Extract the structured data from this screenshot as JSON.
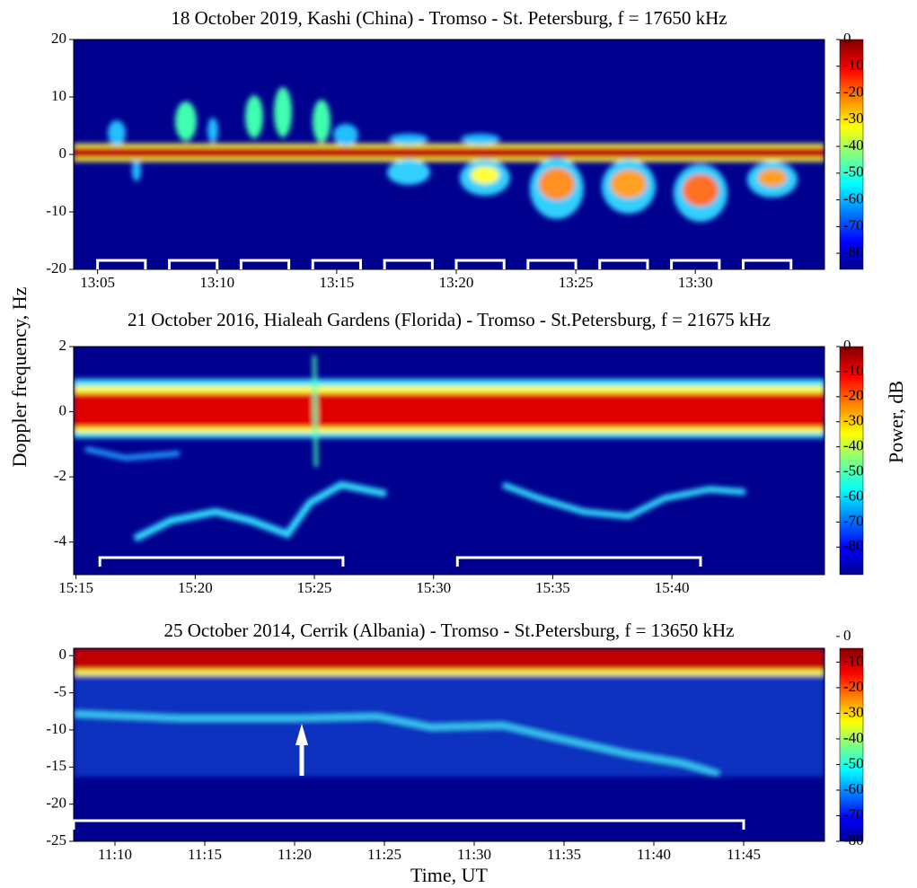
{
  "figure": {
    "y_label": "Doppler frequency, Hz",
    "x_label": "Time, UT",
    "colorbar_label": "Power, dB"
  },
  "chart_data": [
    {
      "type": "spectrogram",
      "title": "18 October 2019, Kashi (China) - Tromso - St. Petersburg, f = 17650 kHz",
      "xlim": [
        784,
        815.4
      ],
      "xticks": [
        {
          "value": 785,
          "label": "13:05"
        },
        {
          "value": 790,
          "label": "13:10"
        },
        {
          "value": 795,
          "label": "13:15"
        },
        {
          "value": 800,
          "label": "13:20"
        },
        {
          "value": 805,
          "label": "13:25"
        },
        {
          "value": 810,
          "label": "13:30"
        }
      ],
      "ylim": [
        -20,
        20
      ],
      "yticks": [
        -20,
        -10,
        0,
        10,
        20
      ],
      "clim": [
        -86,
        0
      ],
      "cticks": [
        0,
        -10,
        -20,
        -30,
        -40,
        -50,
        -60,
        -70,
        -80
      ],
      "intervals": [
        [
          785,
          787
        ],
        [
          788,
          790
        ],
        [
          791,
          793
        ],
        [
          794,
          796
        ],
        [
          797,
          799
        ],
        [
          800,
          802
        ],
        [
          803,
          805
        ],
        [
          806,
          808
        ],
        [
          809,
          811
        ],
        [
          812,
          814
        ]
      ]
    },
    {
      "type": "spectrogram",
      "title": "21 October 2016, Hialeah Gardens (Florida) - Tromso - St.Petersburg, f = 21675 kHz",
      "xlim": [
        914.9,
        946.4
      ],
      "xticks": [
        {
          "value": 915,
          "label": "15:15"
        },
        {
          "value": 920,
          "label": "15:20"
        },
        {
          "value": 925,
          "label": "15:25"
        },
        {
          "value": 930,
          "label": "15:30"
        },
        {
          "value": 935,
          "label": "15:35"
        },
        {
          "value": 940,
          "label": "15:40"
        }
      ],
      "ylim": [
        -5,
        2
      ],
      "yticks": [
        -4,
        -2,
        0,
        2
      ],
      "clim": [
        -91,
        0
      ],
      "cticks": [
        0,
        -10,
        -20,
        -30,
        -40,
        -50,
        -60,
        -70,
        -80
      ],
      "intervals": [
        [
          916,
          926.2
        ],
        [
          931,
          941.2
        ]
      ]
    },
    {
      "type": "spectrogram",
      "title": "25 October 2014, Cerrik (Albania) - Tromso - St.Petersburg, f = 13650 kHz",
      "xlim": [
        667.7,
        709.5
      ],
      "xticks": [
        {
          "value": 670,
          "label": "11:10"
        },
        {
          "value": 675,
          "label": "11:15"
        },
        {
          "value": 680,
          "label": "11:20"
        },
        {
          "value": 685,
          "label": "11:25"
        },
        {
          "value": 690,
          "label": "11:30"
        },
        {
          "value": 695,
          "label": "11:35"
        },
        {
          "value": 700,
          "label": "11:40"
        },
        {
          "value": 705,
          "label": "11:45"
        }
      ],
      "ylim": [
        -25,
        1
      ],
      "yticks": [
        0,
        -5,
        -10,
        -15,
        -20,
        -25
      ],
      "clim": [
        -80,
        -4.6
      ],
      "cticks": [
        0,
        -10,
        -20,
        -30,
        -40,
        -50,
        -60,
        -70,
        -80
      ],
      "intervals": [
        [
          667.7,
          705
        ]
      ]
    }
  ]
}
